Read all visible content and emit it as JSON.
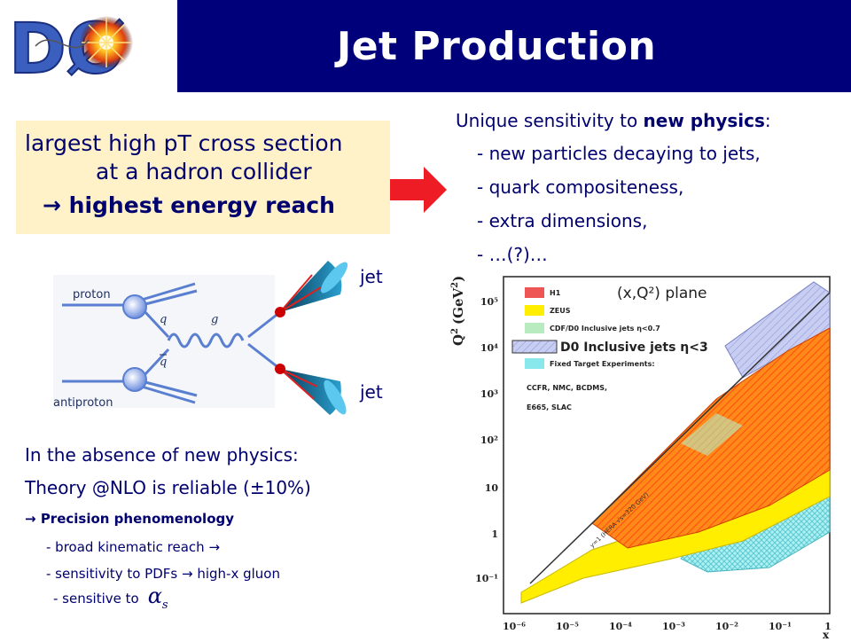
{
  "header": {
    "title": "Jet Production",
    "logo_text": "DØ"
  },
  "highlight": {
    "line1": "largest high pT cross section",
    "line2": "at a hadron collider",
    "arrow_glyph": "→",
    "line3": "highest energy reach"
  },
  "physics": {
    "heading_prefix": "Unique sensitivity to ",
    "heading_bold": "new physics",
    "heading_suffix": ":",
    "items": [
      "- new particles decaying to jets,",
      "- quark compositeness,",
      "- extra dimensions,",
      "- …(?)…"
    ]
  },
  "diagram": {
    "proton": "proton",
    "antiproton": "antiproton",
    "q": "q",
    "qbar": "q",
    "g": "g",
    "jet_top": "jet",
    "jet_bottom": "jet"
  },
  "standard_model": {
    "absence": "In the absence of new physics:",
    "theory": "Theory @NLO is reliable (±10%)",
    "arrow_glyph": "→",
    "precision": "Precision phenomenology",
    "reach": "- broad kinematic reach",
    "pdf_prefix": "- sensitivity to PDFs",
    "pdf_suffix": "high-x gluon",
    "alpha_prefix": "- sensitive to",
    "alpha_symbol": "α",
    "alpha_sub": "s"
  },
  "kinematic_plot": {
    "title": "(x,Q²) plane",
    "ylabel_main": "Q",
    "ylabel_sup": "2",
    "ylabel_unit": "(GeV",
    "ylabel_unit_sup": "2",
    "ylabel_close": ")",
    "xlabel": "x",
    "legend": [
      {
        "label": "H1",
        "color": "#ee5555"
      },
      {
        "label": "ZEUS",
        "color": "#ffee00"
      },
      {
        "label": "CDF/D0  Inclusive jets η<0.7",
        "color": "#b8ecc0"
      },
      {
        "label": "D0 Inclusive jets η<3",
        "color": "#9aa8e8"
      },
      {
        "label": "Fixed Target Experiments:",
        "color": "#88e8ec"
      }
    ],
    "fixed_target_lines": [
      "CCFR, NMC, BCDMS,",
      "E665, SLAC"
    ],
    "hera_label": "y=1 (HERA √s=320 GeV)",
    "y_ticks": [
      "10⁵",
      "10⁴",
      "10³",
      "10²",
      "10",
      "1",
      "10⁻¹"
    ],
    "x_ticks": [
      "10⁻⁶",
      "10⁻⁵",
      "10⁻⁴",
      "10⁻³",
      "10⁻²",
      "10⁻¹",
      "1"
    ]
  },
  "colors": {
    "title_bar": "#00007a",
    "title_text": "#ffffff",
    "body_text": "#00006e",
    "highlight_bg": "#fff2c8",
    "arrow": "#ee1c24"
  }
}
